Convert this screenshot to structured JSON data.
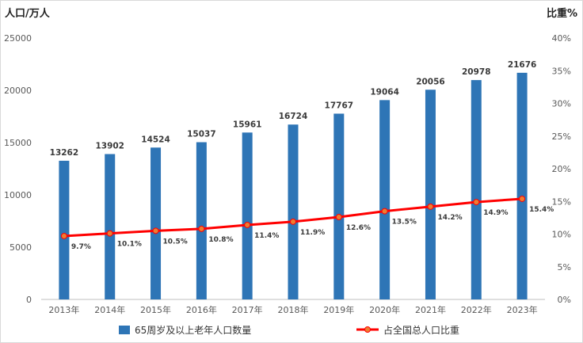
{
  "chart_data": {
    "type": "bar",
    "categories": [
      "2013年",
      "2014年",
      "2015年",
      "2016年",
      "2017年",
      "2018年",
      "2019年",
      "2020年",
      "2021年",
      "2022年",
      "2023年"
    ],
    "series": [
      {
        "name": "65周岁及以上老年人口数量",
        "type": "bar",
        "axis": "left",
        "color": "#2e75b6",
        "values": [
          13262,
          13902,
          14524,
          15037,
          15961,
          16724,
          17767,
          19064,
          20056,
          20978,
          21676
        ],
        "labels": [
          "13262",
          "13902",
          "14524",
          "15037",
          "15961",
          "16724",
          "17767",
          "19064",
          "20056",
          "20978",
          "21676"
        ]
      },
      {
        "name": "占全国总人口比重",
        "type": "line",
        "axis": "right",
        "color": "#ff0000",
        "marker_color": "#ed7d31",
        "values": [
          9.7,
          10.1,
          10.5,
          10.8,
          11.4,
          11.9,
          12.6,
          13.5,
          14.2,
          14.9,
          15.4
        ],
        "labels": [
          "9.7%",
          "10.1%",
          "10.5%",
          "10.8%",
          "11.4%",
          "11.9%",
          "12.6%",
          "13.5%",
          "14.2%",
          "14.9%",
          "15.4%"
        ]
      }
    ],
    "ylabel_left": "人口/万人",
    "ylabel_right": "比重%",
    "ylim_left": [
      0,
      25000
    ],
    "ylim_right": [
      0,
      40
    ],
    "yticks_left": [
      "0",
      "5000",
      "10000",
      "15000",
      "20000",
      "25000"
    ],
    "yticks_right": [
      "0%",
      "5%",
      "10%",
      "15%",
      "20%",
      "25%",
      "30%",
      "35%",
      "40%"
    ],
    "grid": false,
    "legend_position": "bottom"
  }
}
